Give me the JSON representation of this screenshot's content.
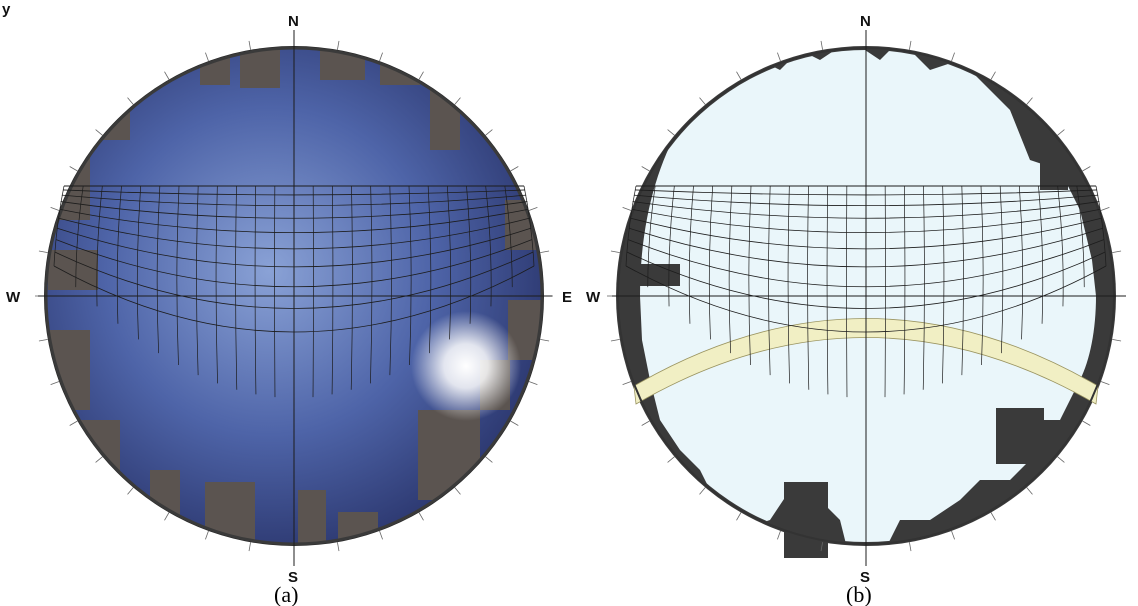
{
  "top_left_fragment": "y",
  "panels": [
    {
      "caption": "(a)",
      "image": "fisheye-sky-photo",
      "directions": {
        "north": "N",
        "south": "S",
        "east": "E",
        "west": "W"
      }
    },
    {
      "caption": "(b)",
      "image": "processed-sky-mask",
      "directions": {
        "north": "N",
        "south": "S",
        "west": "W"
      }
    }
  ],
  "colors": {
    "sky_photo_center": "#7b93c9",
    "sky_photo_edge": "#2b3a72",
    "mask_sky": "#eaf6fa",
    "obstruction": "#3a3a3a",
    "sun_band": "#f1efc4",
    "grid_line": "#1c1c1c"
  }
}
